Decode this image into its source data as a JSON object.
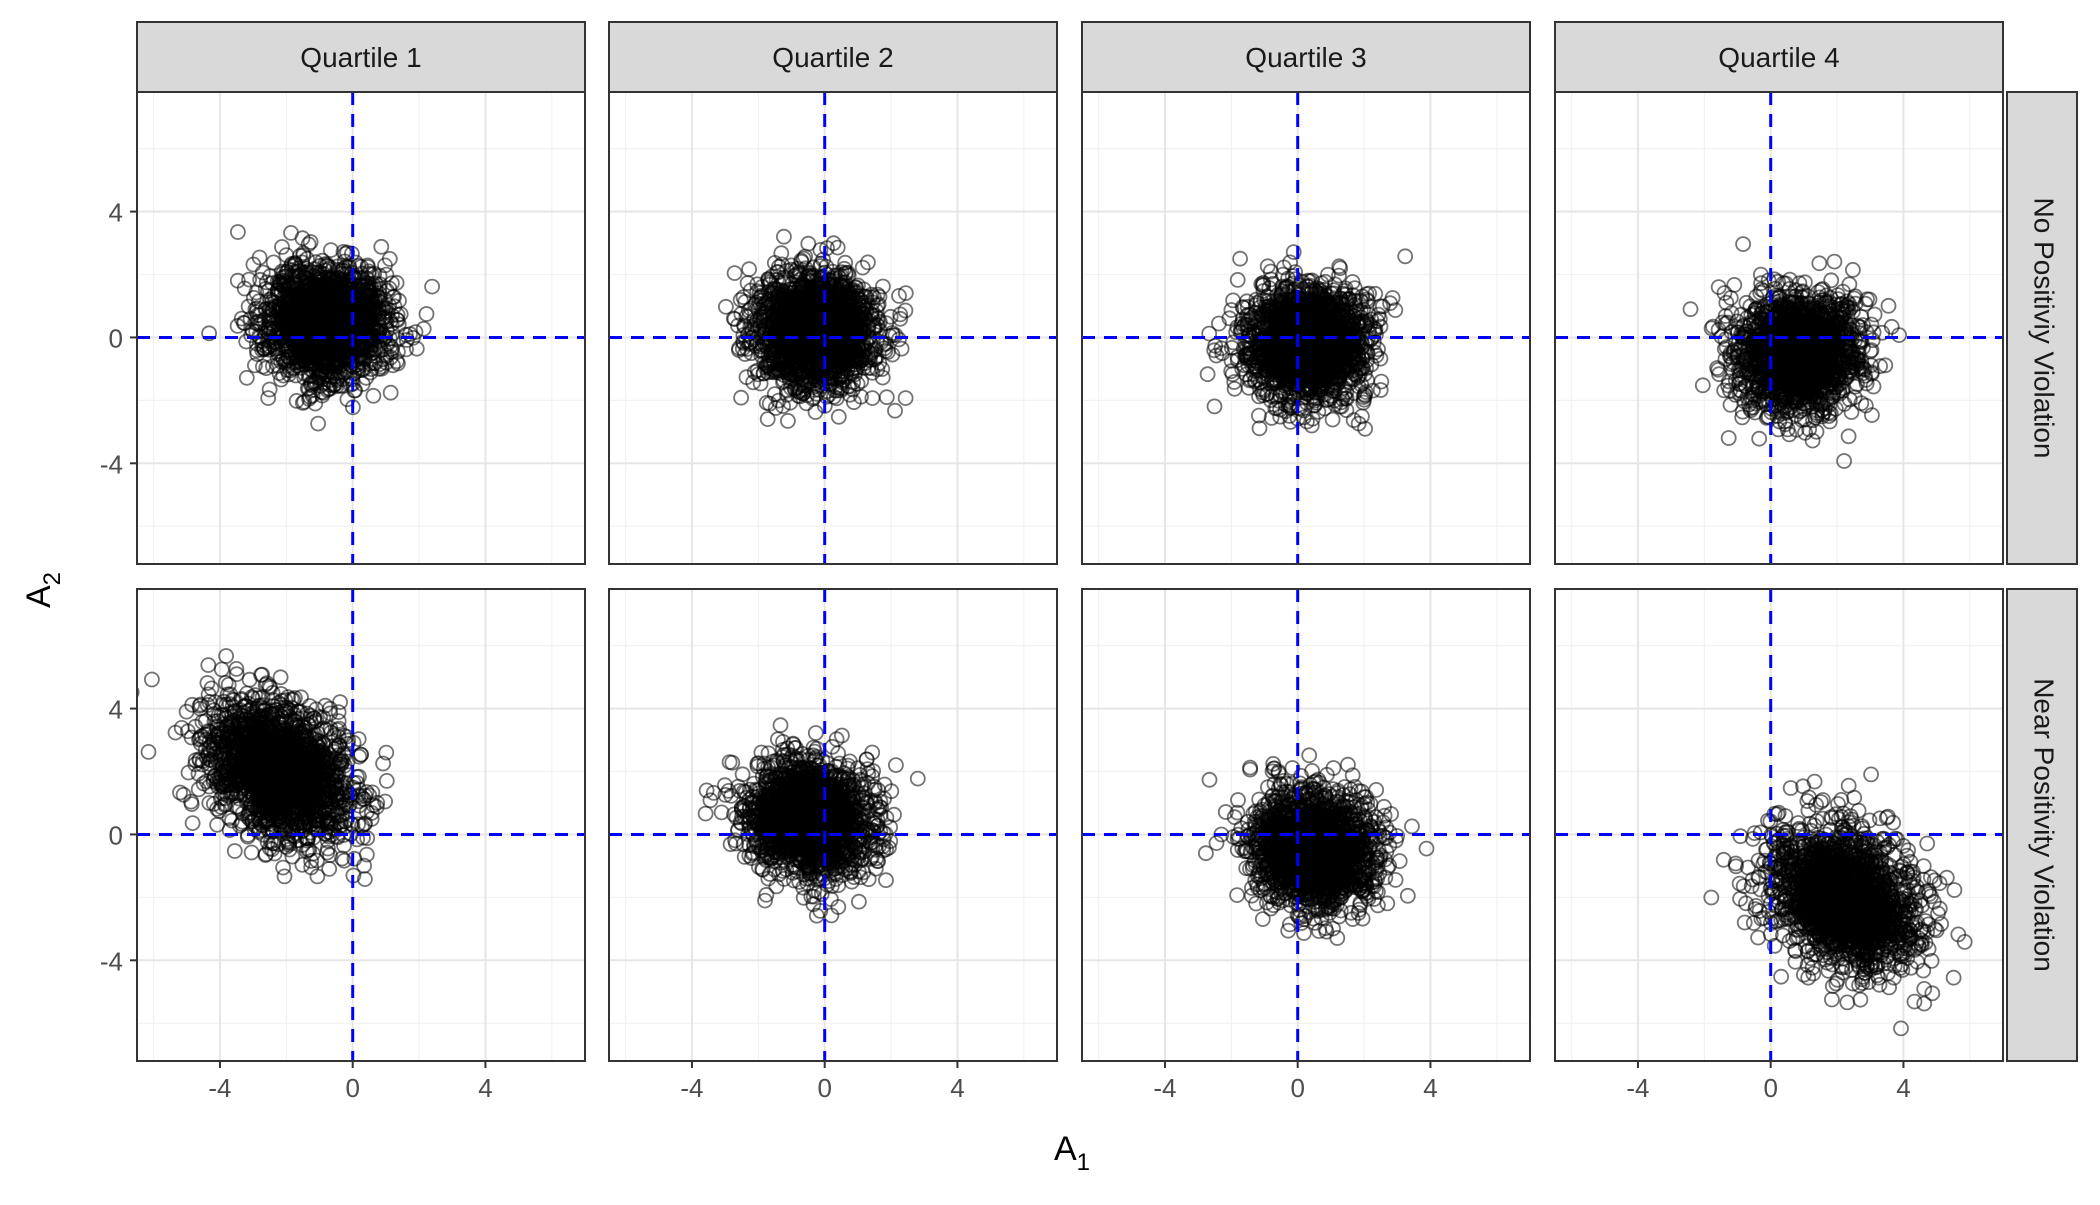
{
  "chart_data": {
    "type": "scatter",
    "layout": "facet_grid",
    "xlabel": "A",
    "xlabel_sub": "1",
    "ylabel": "A",
    "ylabel_sub": "2",
    "xlim": [
      -6.5,
      7
    ],
    "ylim": [
      -7.2,
      7.8
    ],
    "x_ticks": [
      -4,
      0,
      4
    ],
    "y_ticks": [
      -4,
      0,
      4
    ],
    "reference_lines": {
      "x": 0,
      "y": 0,
      "color": "#0000FF",
      "style": "dashed"
    },
    "marker": {
      "shape": "open-circle",
      "color": "#000000",
      "opacity": 0.55
    },
    "points_per_panel": 2000,
    "columns": [
      "Quartile 1",
      "Quartile 2",
      "Quartile 3",
      "Quartile 4"
    ],
    "rows": [
      "No Positiviy Violation",
      "Near Positivity Violation"
    ],
    "panels": [
      {
        "row": 0,
        "col": 0,
        "mean": [
          -0.8,
          0.5
        ],
        "sd": [
          0.9,
          0.9
        ],
        "corr": 0.0
      },
      {
        "row": 0,
        "col": 1,
        "mean": [
          -0.3,
          0.2
        ],
        "sd": [
          0.9,
          0.9
        ],
        "corr": 0.0
      },
      {
        "row": 0,
        "col": 2,
        "mean": [
          0.3,
          -0.2
        ],
        "sd": [
          0.9,
          0.9
        ],
        "corr": 0.0
      },
      {
        "row": 0,
        "col": 3,
        "mean": [
          0.8,
          -0.5
        ],
        "sd": [
          0.9,
          0.9
        ],
        "corr": 0.0
      },
      {
        "row": 1,
        "col": 0,
        "mean": [
          -2.2,
          2.0
        ],
        "sd": [
          1.1,
          1.1
        ],
        "corr": -0.35
      },
      {
        "row": 1,
        "col": 1,
        "mean": [
          -0.5,
          0.5
        ],
        "sd": [
          0.9,
          0.9
        ],
        "corr": -0.1
      },
      {
        "row": 1,
        "col": 2,
        "mean": [
          0.5,
          -0.5
        ],
        "sd": [
          0.9,
          0.9
        ],
        "corr": -0.1
      },
      {
        "row": 1,
        "col": 3,
        "mean": [
          2.2,
          -2.0
        ],
        "sd": [
          1.1,
          1.1
        ],
        "corr": -0.35
      }
    ]
  }
}
